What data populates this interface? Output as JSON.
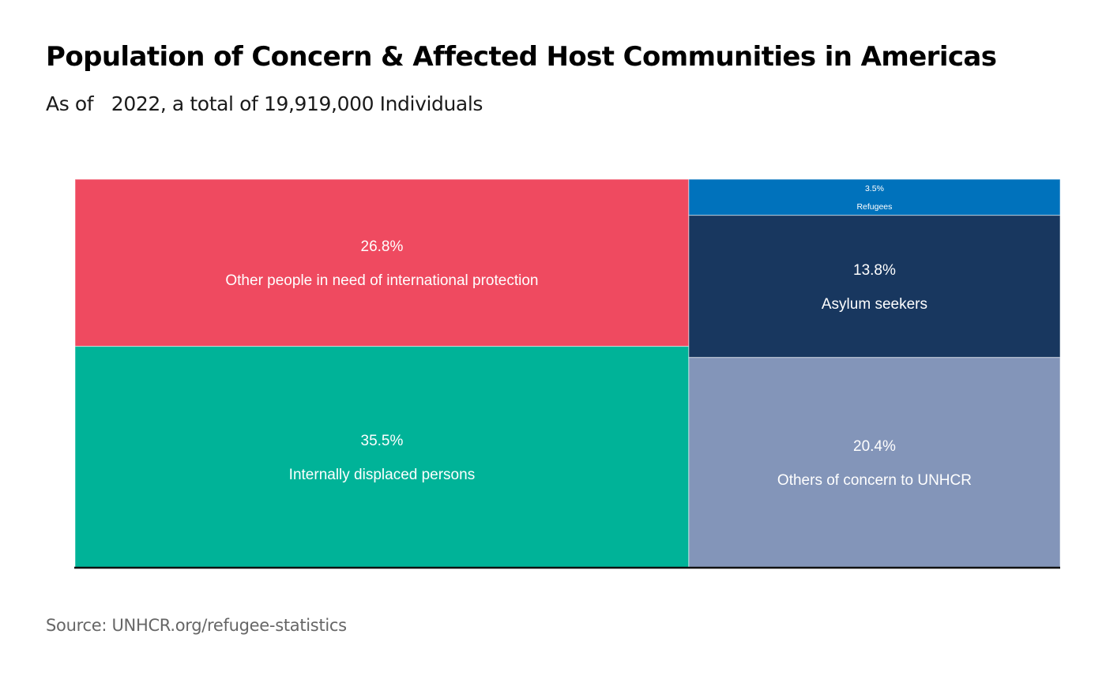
{
  "header": {
    "title": "Population of Concern & Affected Host Communities in Americas",
    "subtitle": "As of   2022, a total of 19,919,000 Individuals"
  },
  "footer": {
    "source": "Source: UNHCR.org/refugee-statistics"
  },
  "chart_data": {
    "type": "treemap",
    "title": "Population of Concern & Affected Host Communities in Americas",
    "subtitle": "As of   2022, a total of 19,919,000 Individuals",
    "total": 19919000,
    "columns": [
      {
        "cells": [
          {
            "label": "Other people in need of international protection",
            "percent_label": "26.8%",
            "value": 26.8,
            "color": "#ef4a60"
          },
          {
            "label": "Internally displaced persons",
            "percent_label": "35.5%",
            "value": 35.5,
            "color": "#00b398"
          }
        ]
      },
      {
        "cells": [
          {
            "label": "Refugees",
            "percent_label": "3.5%",
            "value": 3.5,
            "color": "#0072bc"
          },
          {
            "label": "Asylum seekers",
            "percent_label": "13.8%",
            "value": 13.8,
            "color": "#18375f"
          },
          {
            "label": "Others of concern to UNHCR",
            "percent_label": "20.4%",
            "value": 20.4,
            "color": "#8395b9"
          }
        ]
      }
    ],
    "remainder_color": "#d4c44a"
  }
}
